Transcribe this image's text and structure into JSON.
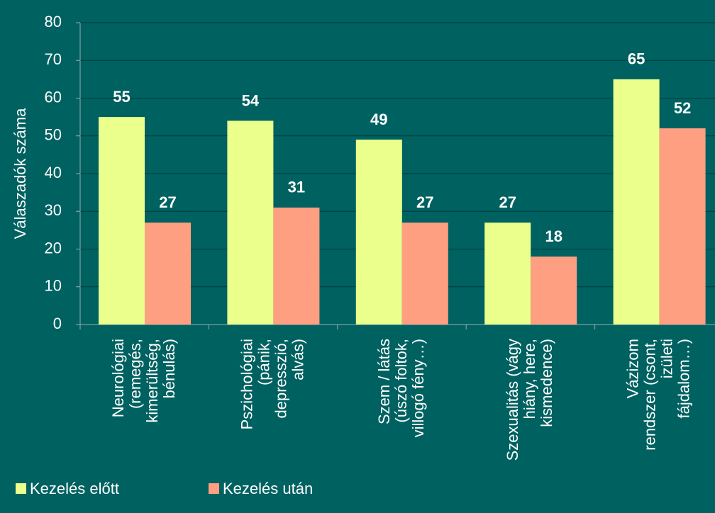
{
  "chart_data": {
    "type": "bar",
    "ylabel": "Válaszadók száma",
    "categories": [
      [
        "Neurológiai",
        "(remegés,",
        "kimerültség,",
        "bénulás)"
      ],
      [
        "Pszichológiai",
        "(pánik,",
        "depresszió,",
        "alvás)"
      ],
      [
        "Szem / látás",
        "(úszó foltok,",
        "villogó fény…)"
      ],
      [
        "Szexualitás (vágy",
        "hiány, here,",
        "kismedence)"
      ],
      [
        "Vázizom",
        "rendszer (csont,",
        "izületi",
        "fájdalom…)"
      ]
    ],
    "series": [
      {
        "name": "Kezelés előtt",
        "color": "#eaff8c",
        "values": [
          55,
          54,
          49,
          27,
          65
        ]
      },
      {
        "name": "Kezelés után",
        "color": "#ff9f82",
        "values": [
          27,
          31,
          27,
          18,
          52
        ]
      }
    ],
    "ylim": [
      0,
      80
    ],
    "yticks": [
      0,
      10,
      20,
      30,
      40,
      50,
      60,
      70,
      80
    ],
    "grid": true,
    "legend": "bottom-left"
  }
}
